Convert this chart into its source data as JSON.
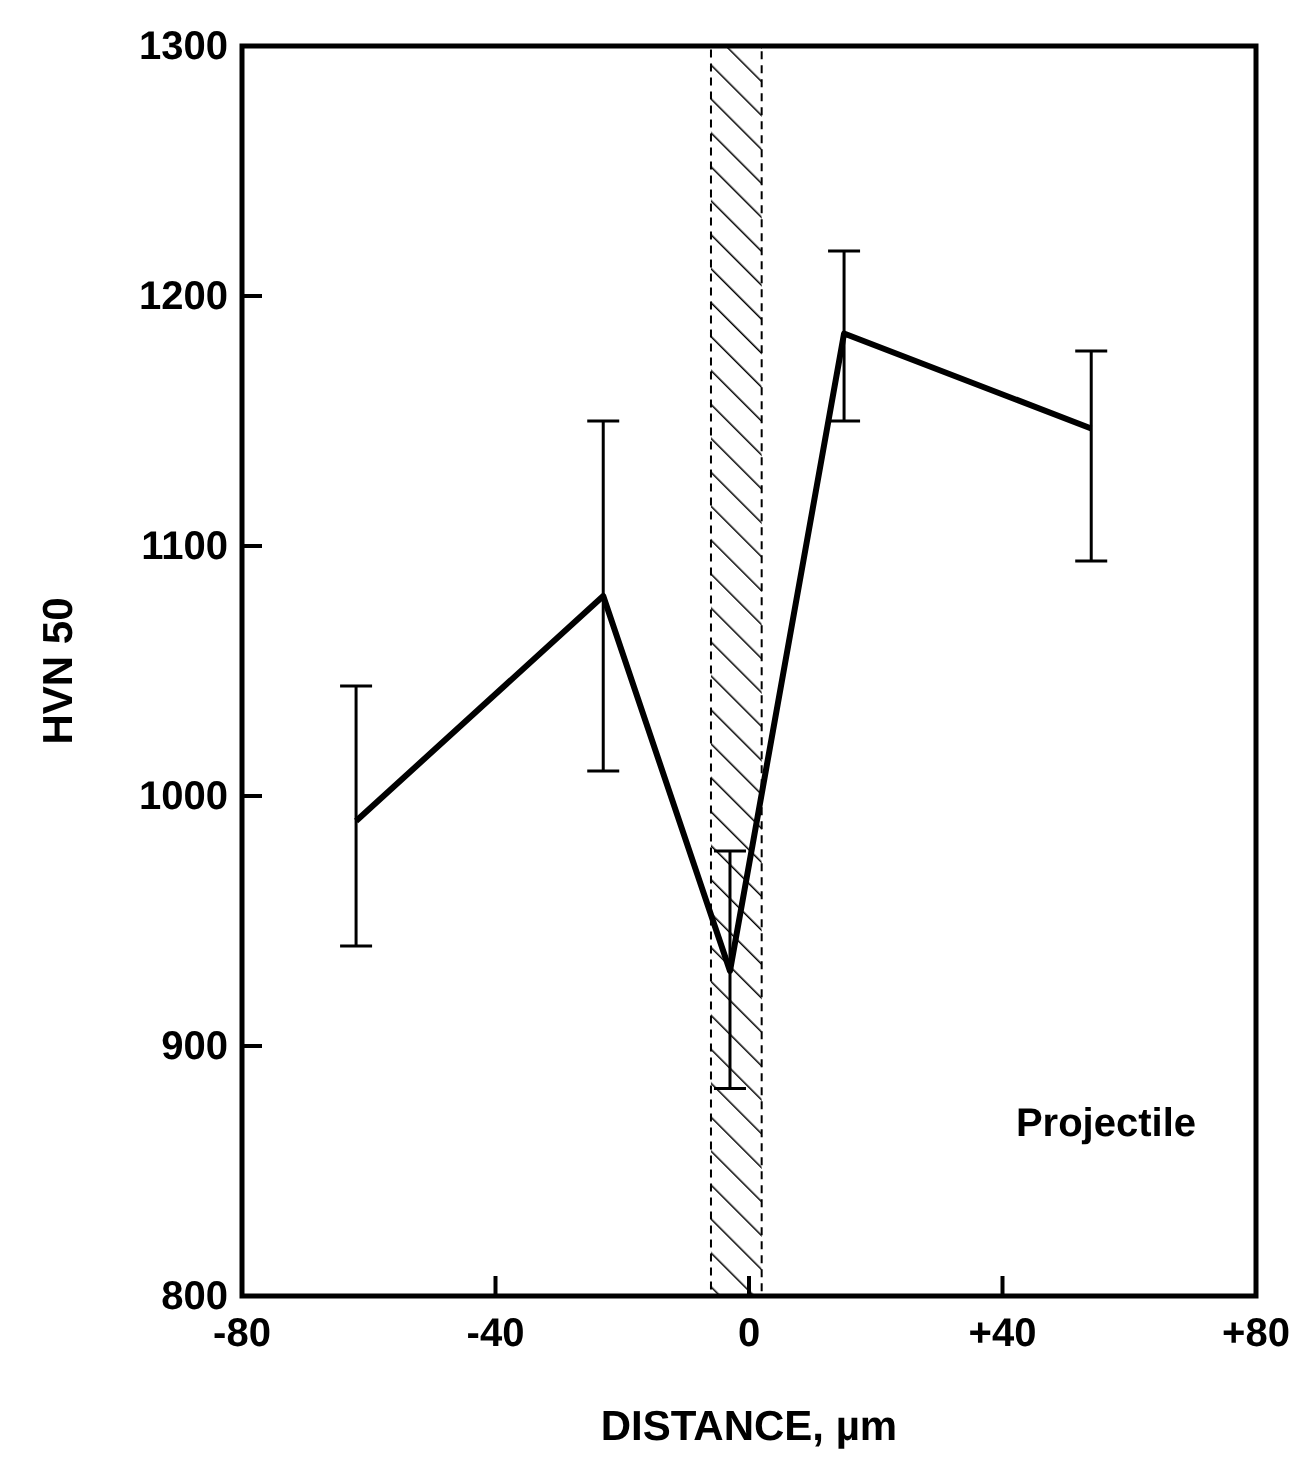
{
  "chart_data": {
    "type": "line",
    "xlabel": "DISTANCE, µm",
    "ylabel": "HVN 50",
    "x": [
      -62,
      -23,
      -3,
      15,
      54
    ],
    "values": [
      990,
      1080,
      930,
      1185,
      1147
    ],
    "errors": [
      [
        940,
        1044
      ],
      [
        1010,
        1150
      ],
      [
        883,
        978
      ],
      [
        1150,
        1218
      ],
      [
        1094,
        1178
      ]
    ],
    "color": "#000000",
    "xlim": [
      -80,
      80
    ],
    "xticks": [
      -80,
      -40,
      0,
      {
        "value": 40,
        "label": "+40"
      },
      {
        "value": 80,
        "label": "+80"
      }
    ],
    "ylim": [
      800,
      1300
    ],
    "yticks": [
      800,
      900,
      1000,
      1100,
      1200,
      1300
    ],
    "bands": [
      {
        "axis": "x",
        "from": -6,
        "to": 2,
        "color": "#000000"
      }
    ],
    "annotations": [
      "Projectile"
    ],
    "line_style": "solid",
    "grid": false
  }
}
